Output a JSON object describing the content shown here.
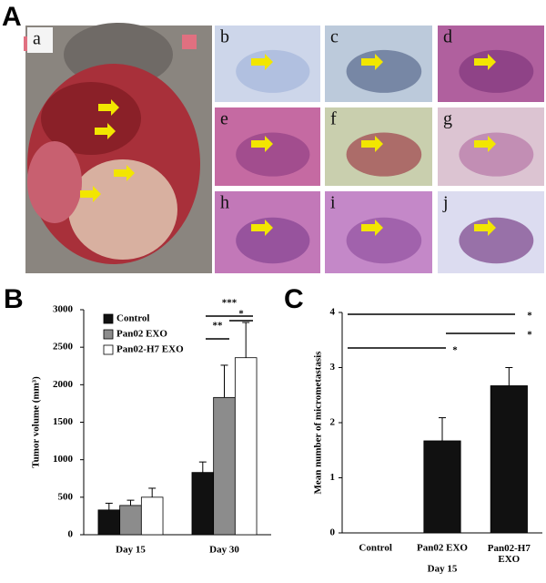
{
  "figure": {
    "panel_a": {
      "label": "A",
      "images": [
        "a",
        "b",
        "c",
        "d",
        "e",
        "f",
        "g",
        "h",
        "i",
        "j"
      ]
    }
  },
  "chart_data": [
    {
      "type": "bar",
      "panel_label": "B",
      "y_label": "Tumor volume (mm³)",
      "categories": [
        "Day 15",
        "Day 30"
      ],
      "series": [
        {
          "name": "Control",
          "color": "#111111",
          "values": [
            330,
            830
          ],
          "errors": [
            90,
            140
          ]
        },
        {
          "name": "Pan02 EXO",
          "color": "#8c8c8c",
          "values": [
            390,
            1830
          ],
          "errors": [
            70,
            430
          ]
        },
        {
          "name": "Pan02-H7 EXO",
          "color": "#ffffff",
          "values": [
            500,
            2360
          ],
          "errors": [
            120,
            470
          ]
        }
      ],
      "ylim": [
        0,
        3000
      ],
      "yticks": [
        0,
        500,
        1000,
        1500,
        2000,
        2500,
        3000
      ],
      "legend": "upper left",
      "annotations": [
        "***",
        "**",
        "*"
      ]
    },
    {
      "type": "bar",
      "panel_label": "C",
      "y_label": "Mean number of micrometastasis",
      "x_label": "Day 15",
      "categories": [
        "Control",
        "Pan02 EXO",
        "Pan02-H7\nEXO"
      ],
      "series": [
        {
          "color": "#111111",
          "values": [
            0,
            1.67,
            2.67
          ],
          "errors": [
            0,
            0.42,
            0.33
          ]
        }
      ],
      "ylim": [
        0,
        4
      ],
      "yticks": [
        0,
        1,
        2,
        3,
        4
      ],
      "annotations": [
        "*",
        "*",
        "*"
      ]
    }
  ]
}
